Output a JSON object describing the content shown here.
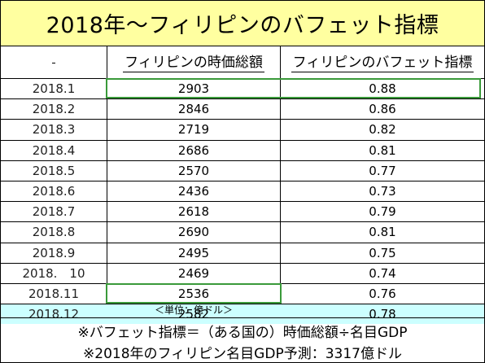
{
  "title": "2018年～フィリピンのバフェット指標",
  "headers": {
    "date": "",
    "market_cap": "フィリピンの時価総額",
    "buffett": "フィリピンのバフェット指標"
  },
  "rows": [
    {
      "date": "2018.1",
      "market_cap": "2903",
      "buffett": "0.88"
    },
    {
      "date": "2018.2",
      "market_cap": "2846",
      "buffett": "0.86"
    },
    {
      "date": "2018.3",
      "market_cap": "2719",
      "buffett": "0.82"
    },
    {
      "date": "2018.4",
      "market_cap": "2686",
      "buffett": "0.81"
    },
    {
      "date": "2018.5",
      "market_cap": "2570",
      "buffett": "0.77"
    },
    {
      "date": "2018.6",
      "market_cap": "2436",
      "buffett": "0.73"
    },
    {
      "date": "2018.7",
      "market_cap": "2618",
      "buffett": "0.79"
    },
    {
      "date": "2018.8",
      "market_cap": "2690",
      "buffett": "0.81"
    },
    {
      "date": "2018.9",
      "market_cap": "2495",
      "buffett": "0.75"
    },
    {
      "date": "2018.　10",
      "market_cap": "2469",
      "buffett": "0.74"
    },
    {
      "date": "2018.11",
      "market_cap": "2536",
      "buffett": "0.76"
    },
    {
      "date": "2018.12",
      "market_cap": "2582",
      "buffett": "0.78"
    }
  ],
  "unit_note": "＜単位：億ドル＞",
  "notes": {
    "formula": "※バフェット指標＝（ある国の）時価総額÷名目GDP",
    "gdp_forecast": "※2018年のフィリピン名目GDP予測：3317億ドル"
  },
  "colors": {
    "title_bg": "#ffffa0",
    "highlight_row_bg": "#ccffff",
    "box_border": "#3a9a3a"
  }
}
